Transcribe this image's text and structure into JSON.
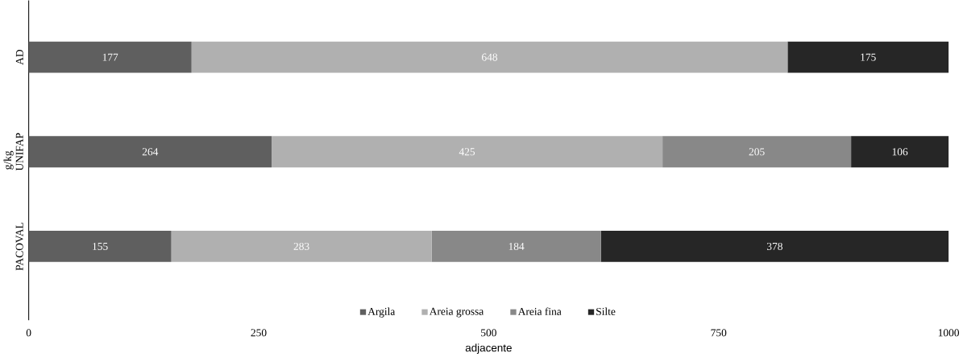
{
  "chart_data": {
    "type": "bar",
    "orientation": "horizontal",
    "stacked": true,
    "xlabel": "adjacente",
    "ylabel": "g/kg",
    "categories": [
      "AD",
      "UNIFAP",
      "PACOVAL"
    ],
    "series": [
      {
        "name": "Argila",
        "color": "#5f5f5f",
        "values": [
          177,
          264,
          155
        ],
        "value_labels": [
          "177",
          "264",
          "155"
        ]
      },
      {
        "name": "Areia grossa",
        "color": "#b0b0b0",
        "values": [
          648,
          425,
          283
        ],
        "value_labels": [
          "648",
          "425",
          "283"
        ]
      },
      {
        "name": "Areia fina",
        "color": "#888888",
        "values": [
          0,
          205,
          184
        ],
        "value_labels": [
          null,
          "205",
          "184"
        ]
      },
      {
        "name": "Silte",
        "color": "#262626",
        "values": [
          175,
          106,
          378
        ],
        "value_labels": [
          "175",
          "106",
          "378"
        ]
      }
    ],
    "xlim": [
      0,
      1000
    ],
    "xticks": [
      0,
      250,
      500,
      750,
      1000
    ],
    "legend": "bottom",
    "grid": false
  }
}
